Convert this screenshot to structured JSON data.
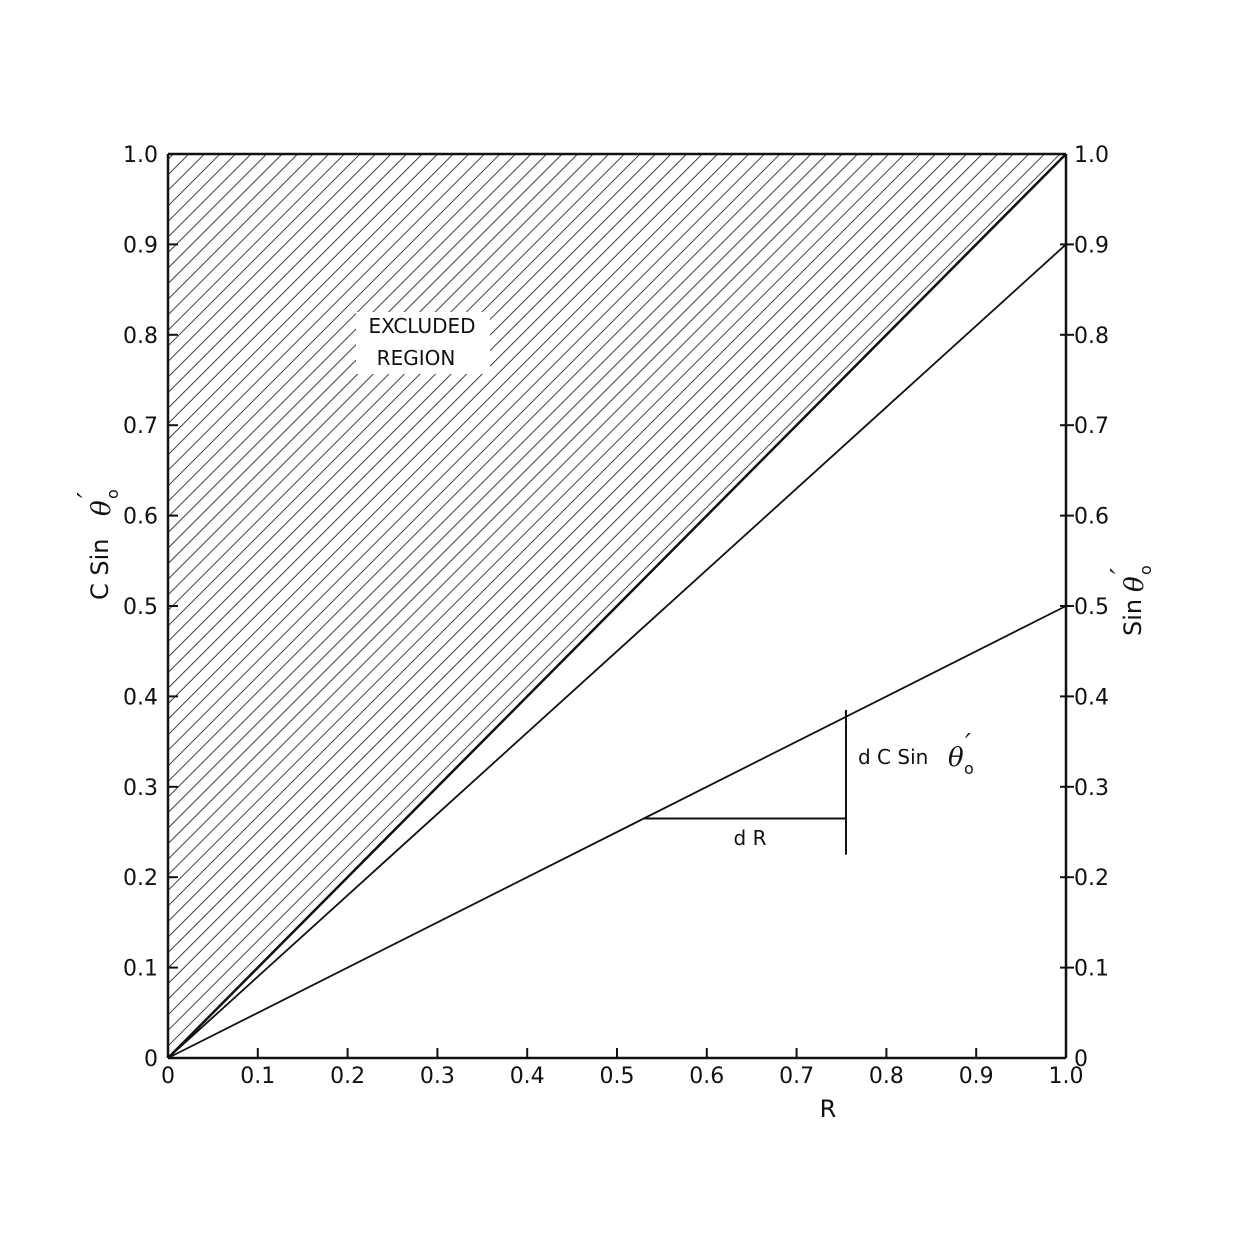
{
  "chart_data": {
    "type": "line",
    "xlabel": "R",
    "ylabel_left": {
      "prefix": "C Sin ",
      "symbol": "θ",
      "prime": "′",
      "sub": "o"
    },
    "ylabel_right": {
      "prefix": "Sin ",
      "symbol": "θ",
      "prime": "′",
      "sub": "o"
    },
    "xlim": [
      0,
      1.0
    ],
    "ylim": [
      0,
      1.0
    ],
    "x_ticks": [
      "0",
      "0.1",
      "0.2",
      "0.3",
      "0.4",
      "0.5",
      "0.6",
      "0.7",
      "0.8",
      "0.9",
      "1.0"
    ],
    "y_ticks_left": [
      "0",
      "0.1",
      "0.2",
      "0.3",
      "0.4",
      "0.5",
      "0.6",
      "0.7",
      "0.8",
      "0.9",
      "1.0"
    ],
    "y_ticks_right": [
      "0",
      "0.1",
      "0.2",
      "0.3",
      "0.4",
      "0.5",
      "0.6",
      "0.7",
      "0.8",
      "0.9",
      "1.0"
    ],
    "series": [
      {
        "x": [
          0,
          1.0
        ],
        "y": [
          0,
          1.0
        ]
      },
      {
        "x": [
          0,
          1.0
        ],
        "y": [
          0,
          0.9
        ]
      },
      {
        "x": [
          0,
          1.0
        ],
        "y": [
          0,
          0.5
        ]
      }
    ],
    "excluded_region": {
      "label_line1": "EXCLUDED",
      "label_line2": "REGION",
      "polygon": [
        [
          0,
          0
        ],
        [
          0,
          1.0
        ],
        [
          1.0,
          1.0
        ]
      ]
    },
    "slope_triangle": {
      "x_start": 0.53,
      "x_end": 0.755,
      "y_base": 0.265,
      "y_bottom": 0.225,
      "y_top": 0.385,
      "dr_label": "d R",
      "dy_label": {
        "prefix": "d C Sin ",
        "symbol": "θ",
        "prime": "′",
        "sub": "o"
      }
    },
    "grid": false,
    "legend": "none"
  }
}
